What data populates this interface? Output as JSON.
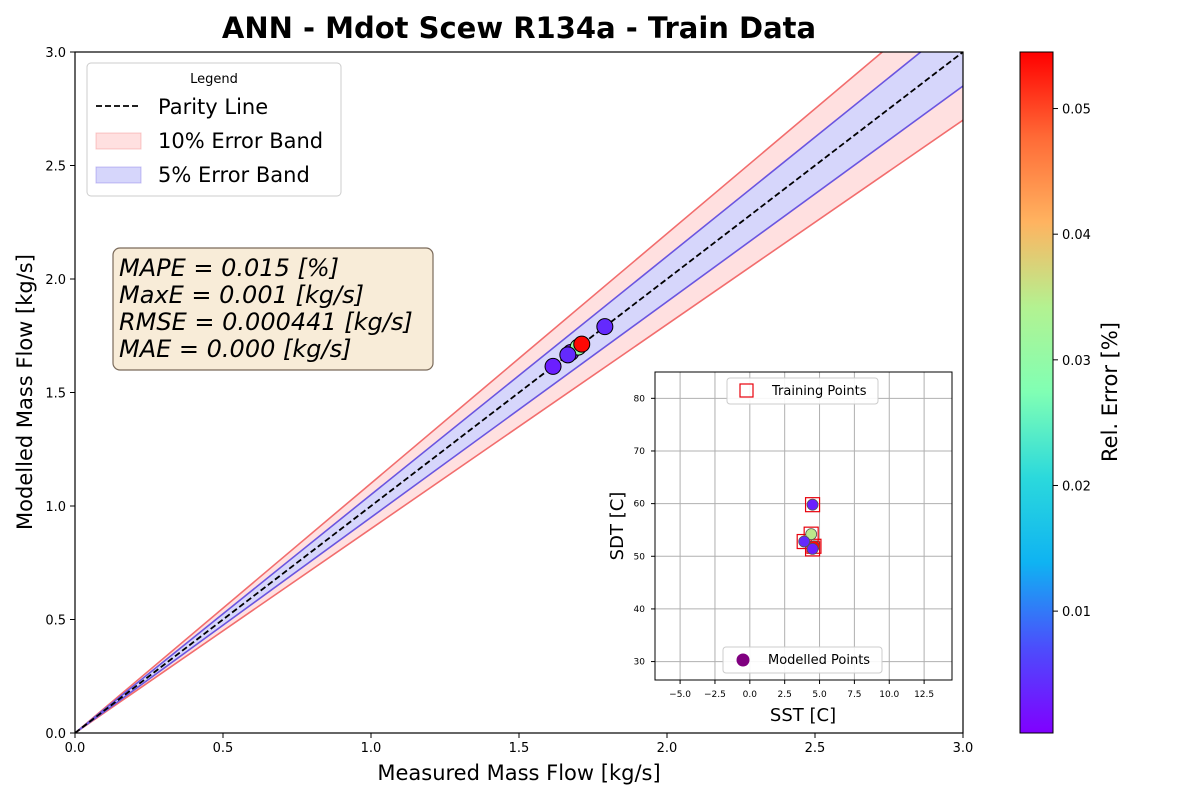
{
  "chart_data": [
    {
      "type": "scatter",
      "title": "ANN - Mdot Scew R134a - Train Data",
      "xlabel": "Measured Mass Flow [kg/s]",
      "ylabel": "Modelled Mass Flow [kg/s]",
      "xlim": [
        0,
        3.0
      ],
      "ylim": [
        0,
        3.0
      ],
      "xticks": [
        "0.0",
        "0.5",
        "1.0",
        "1.5",
        "2.0",
        "2.5",
        "3.0"
      ],
      "yticks": [
        "0.0",
        "0.5",
        "1.0",
        "1.5",
        "2.0",
        "2.5",
        "3.0"
      ],
      "grid": false,
      "legend": {
        "title": "Legend",
        "placement": "top-left",
        "entries": [
          "Parity Line",
          "10% Error Band",
          "5% Error Band"
        ]
      },
      "bands": {
        "ten_percent": 0.1,
        "five_percent": 0.05
      },
      "points": [
        {
          "x": 1.615,
          "y": 1.615,
          "err": 0.003
        },
        {
          "x": 1.675,
          "y": 1.676,
          "err": 0.002
        },
        {
          "x": 1.7,
          "y": 1.7,
          "err": 0.03
        },
        {
          "x": 1.712,
          "y": 1.713,
          "err": 0.054
        },
        {
          "x": 1.665,
          "y": 1.666,
          "err": 0.004
        },
        {
          "x": 1.79,
          "y": 1.79,
          "err": 0.004
        }
      ],
      "stats": [
        "MAPE = 0.015 [%]",
        "MaxE = 0.001 [kg/s]",
        "RMSE = 0.000441 [kg/s]",
        "MAE = 0.000 [kg/s]"
      ],
      "colorbar": {
        "label": "Rel. Error [%]",
        "min": 0.0003,
        "max": 0.0545,
        "ticks": [
          0.01,
          0.02,
          0.03,
          0.04,
          0.05
        ],
        "tick_labels": [
          "0.01",
          "0.02",
          "0.03",
          "0.04",
          "0.05"
        ],
        "colormap": "rainbow"
      }
    },
    {
      "type": "scatter",
      "xlabel": "SST [C]",
      "ylabel": "SDT [C]",
      "xlim": [
        -6.8,
        14.5
      ],
      "ylim": [
        26.5,
        85.0
      ],
      "xticks": [
        -5.0,
        -2.5,
        0.0,
        2.5,
        5.0,
        7.5,
        10.0,
        12.5
      ],
      "xtick_labels": [
        "−5.0",
        "−2.5",
        "0.0",
        "2.5",
        "5.0",
        "7.5",
        "10.0",
        "12.5"
      ],
      "yticks": [
        30,
        40,
        50,
        60,
        70,
        80
      ],
      "ytick_labels": [
        "30",
        "40",
        "50",
        "60",
        "70",
        "80"
      ],
      "grid": true,
      "legends": [
        {
          "label": "Training Points",
          "placement": "top-center"
        },
        {
          "label": "Modelled Points",
          "placement": "bottom-center"
        }
      ],
      "training_points": [
        {
          "x": 4.5,
          "y": 59.8
        },
        {
          "x": 4.4,
          "y": 54.2
        },
        {
          "x": 3.9,
          "y": 52.8
        },
        {
          "x": 4.6,
          "y": 51.9
        },
        {
          "x": 4.5,
          "y": 51.4
        }
      ],
      "modelled_points": [
        {
          "x": 4.5,
          "y": 59.8,
          "err": 0.003
        },
        {
          "x": 4.4,
          "y": 54.2,
          "err": 0.035
        },
        {
          "x": 3.9,
          "y": 52.8,
          "err": 0.004
        },
        {
          "x": 4.6,
          "y": 51.9,
          "err": 0.054
        },
        {
          "x": 4.5,
          "y": 51.4,
          "err": 0.003
        }
      ]
    }
  ],
  "colors": {
    "parity": "#000000",
    "band10_fill": "#ffe0e0",
    "band10_line": "#f26d6d",
    "band5_fill": "#d6d6fb",
    "band5_line": "#6a55e0",
    "stats_box_fill": "#f8ecd8",
    "stats_box_edge": "#7a6a5a",
    "training_marker": "#e8000b",
    "modelled_legend_marker": "#800080"
  }
}
